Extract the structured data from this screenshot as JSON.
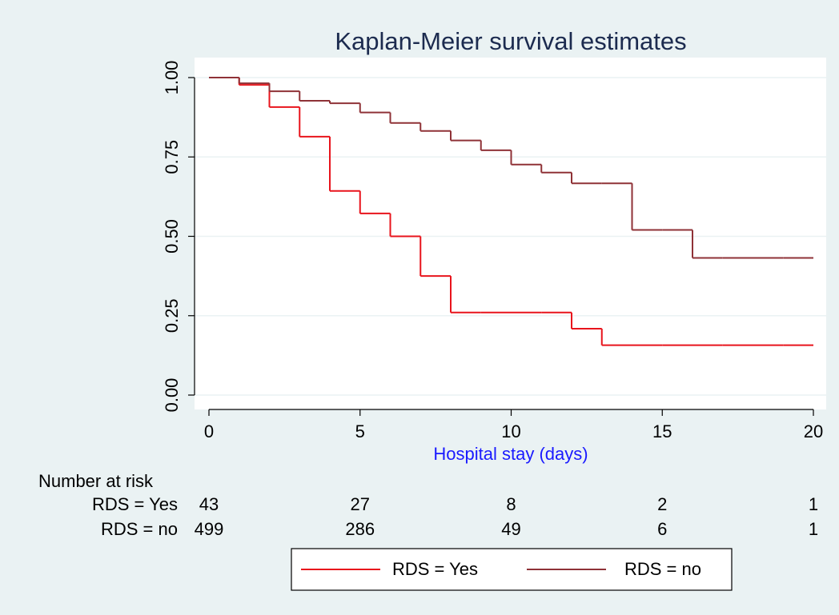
{
  "chart_data": {
    "type": "step",
    "title": "Kaplan-Meier survival estimates",
    "x_label": "Hospital stay (days)",
    "x": [
      0,
      1,
      2,
      3,
      4,
      5,
      6,
      7,
      8,
      9,
      10,
      11,
      12,
      13,
      14,
      15,
      16,
      17,
      18,
      19,
      20
    ],
    "series": [
      {
        "name": "RDS = Yes",
        "color": "#e8141c",
        "values": [
          1,
          0.977,
          0.907,
          0.814,
          0.643,
          0.572,
          0.5,
          0.375,
          0.26,
          0.26,
          0.26,
          0.26,
          0.209,
          0.157,
          0.157,
          0.157,
          0.157,
          0.157,
          0.157,
          0.157,
          0.157
        ]
      },
      {
        "name": "RDS = no",
        "color": "#8f3237",
        "values": [
          1,
          0.982,
          0.957,
          0.927,
          0.919,
          0.89,
          0.857,
          0.832,
          0.802,
          0.771,
          0.726,
          0.701,
          0.667,
          0.667,
          0.52,
          0.52,
          0.432,
          0.432,
          0.432,
          0.432,
          0.432
        ]
      }
    ],
    "xlim": [
      0,
      20
    ],
    "xticks": [
      0,
      5,
      10,
      15,
      20
    ],
    "ylim": [
      0,
      1
    ],
    "yticks": [
      {
        "value": 0,
        "label": "0.00"
      },
      {
        "value": 0.25,
        "label": "0.25"
      },
      {
        "value": 0.5,
        "label": "0.50"
      },
      {
        "value": 0.75,
        "label": "0.75"
      },
      {
        "value": 1,
        "label": "1.00"
      }
    ],
    "grid": true,
    "risk_table": {
      "title": "Number at risk",
      "rows": [
        {
          "label": "RDS = Yes",
          "values": [
            43,
            27,
            8,
            2,
            1
          ]
        },
        {
          "label": "RDS = no",
          "values": [
            499,
            286,
            49,
            6,
            1
          ]
        }
      ]
    },
    "legend": "bottom"
  }
}
